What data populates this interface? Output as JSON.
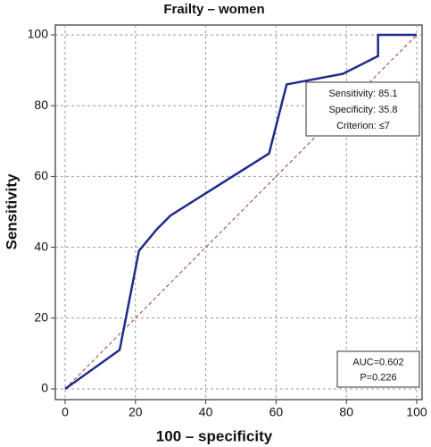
{
  "chart_data": {
    "type": "line",
    "title": "Frailty – women",
    "x_label": "100 – specificity",
    "y_label": "Sensitivity",
    "x": [
      0,
      15.5,
      21,
      26,
      30,
      58,
      63,
      79,
      89,
      89,
      100
    ],
    "values": [
      0,
      11,
      39,
      45,
      49,
      66.5,
      86,
      89,
      94,
      100,
      100
    ],
    "color": "#1f2a8c",
    "xlim": [
      0,
      100
    ],
    "ylim": [
      0,
      100
    ],
    "xticks": [
      0,
      20,
      40,
      60,
      80,
      100
    ],
    "yticks": [
      0,
      20,
      40,
      60,
      80,
      100
    ],
    "grid": true,
    "annotations": [
      [
        "Sensitivity: 85.1",
        "Specificity: 35.8",
        "Criterion: ≤7"
      ],
      [
        "AUC=0.602",
        "P=0.226"
      ]
    ]
  }
}
